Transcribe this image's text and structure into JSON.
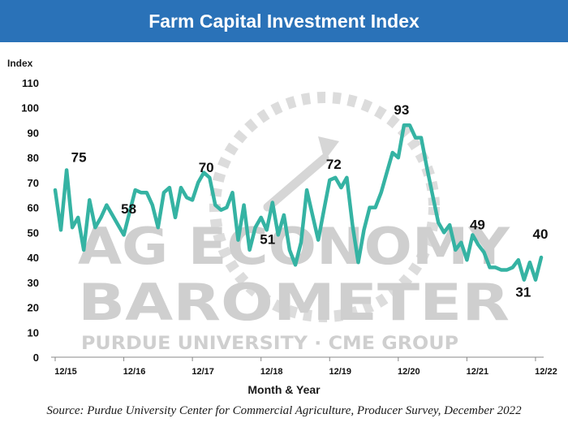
{
  "title": "Farm Capital Investment Index",
  "source": "Source: Purdue University Center for Commercial Agriculture, Producer Survey, December 2022",
  "watermark": {
    "line1": "AG ECONOMY",
    "line2": "BAROMETER",
    "line3": "PURDUE UNIVERSITY  ·  CME GROUP"
  },
  "colors": {
    "title_bar": "#2a72b8",
    "line": "#35b3a3",
    "watermark": "#cfcfcf"
  },
  "chart_data": {
    "type": "line",
    "title": "Farm Capital Investment Index",
    "ylabel": "Index",
    "xlabel": "Month & Year",
    "ylim": [
      0,
      110
    ],
    "yticks": [
      0,
      10,
      20,
      30,
      40,
      50,
      60,
      70,
      80,
      90,
      100,
      110
    ],
    "xticks": [
      {
        "label": "12/15",
        "x": 0
      },
      {
        "label": "12/16",
        "x": 12
      },
      {
        "label": "12/17",
        "x": 24
      },
      {
        "label": "12/18",
        "x": 36
      },
      {
        "label": "12/19",
        "x": 48
      },
      {
        "label": "12/20",
        "x": 60
      },
      {
        "label": "12/21",
        "x": 72
      },
      {
        "label": "12/22",
        "x": 84
      }
    ],
    "grid": "none",
    "series": [
      {
        "values": [
          67,
          51,
          75,
          52,
          56,
          43,
          63,
          52,
          56,
          61,
          57,
          53,
          49,
          58,
          67,
          66,
          66,
          61,
          52,
          66,
          68,
          56,
          68,
          64,
          63,
          70,
          74,
          72,
          61,
          59,
          60,
          66,
          47,
          61,
          43,
          52,
          56,
          51,
          62,
          49,
          57,
          43,
          37,
          46,
          67,
          57,
          47,
          59,
          71,
          72,
          68,
          72,
          53,
          38,
          51,
          60,
          60,
          66,
          74,
          82,
          80,
          93,
          93,
          88,
          88,
          76,
          65,
          54,
          50,
          53,
          43,
          46,
          39,
          49,
          45,
          42,
          36,
          36,
          35,
          35,
          36,
          39,
          31,
          38,
          31,
          40
        ]
      }
    ],
    "annotations": [
      {
        "label": "75",
        "x": 2,
        "y": 75
      },
      {
        "label": "58",
        "x": 13,
        "y": 58
      },
      {
        "label": "70",
        "x": 25,
        "y": 70
      },
      {
        "label": "51",
        "x": 37,
        "y": 51
      },
      {
        "label": "72",
        "x": 49,
        "y": 72
      },
      {
        "label": "93",
        "x": 61,
        "y": 93
      },
      {
        "label": "49",
        "x": 73,
        "y": 49
      },
      {
        "label": "31",
        "x": 82,
        "y": 31
      },
      {
        "label": "40",
        "x": 85,
        "y": 40
      }
    ]
  }
}
